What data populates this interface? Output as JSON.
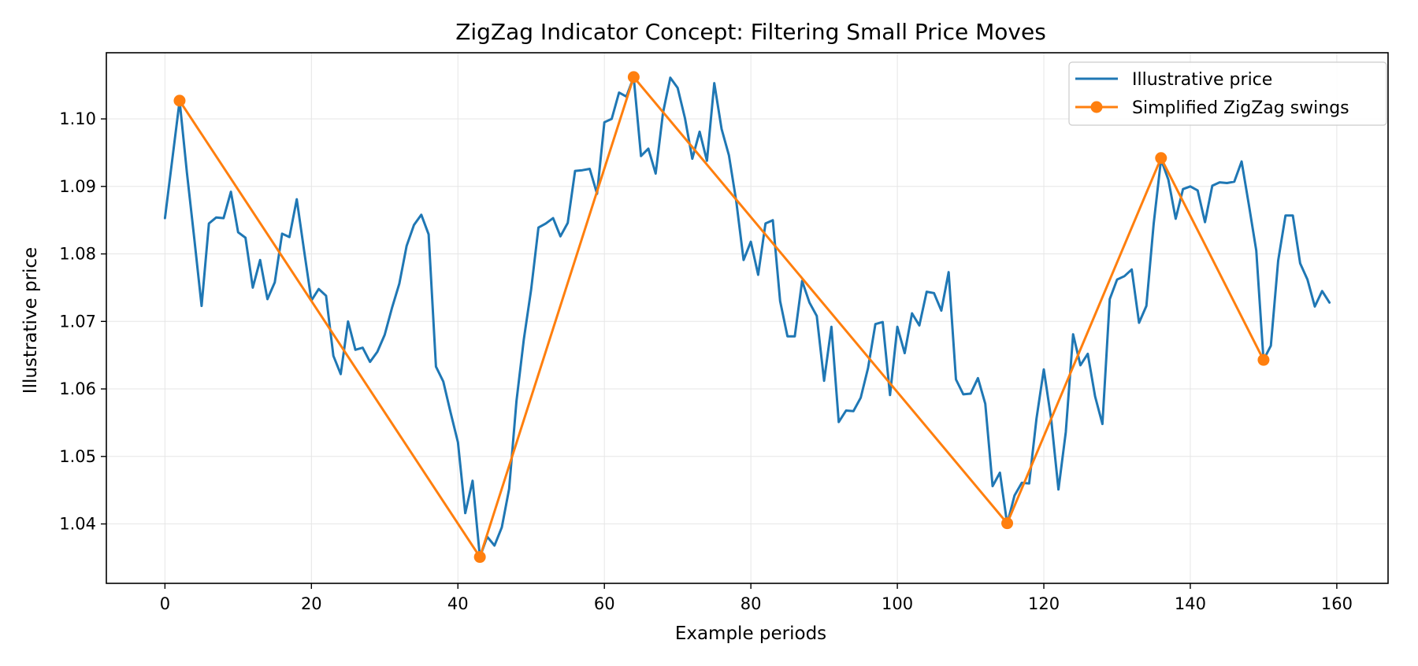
{
  "chart_data": {
    "type": "line",
    "title": "ZigZag Indicator Concept: Filtering Small Price Moves",
    "xlabel": "Example periods",
    "ylabel": "Illustrative price",
    "xlim": [
      -8,
      167
    ],
    "ylim": [
      1.0312,
      1.1098
    ],
    "xticks": [
      0,
      20,
      40,
      60,
      80,
      100,
      120,
      140,
      160
    ],
    "yticks": [
      1.04,
      1.05,
      1.06,
      1.07,
      1.08,
      1.09,
      1.1
    ],
    "xtick_labels": [
      "0",
      "20",
      "40",
      "60",
      "80",
      "100",
      "120",
      "140",
      "160"
    ],
    "ytick_labels": [
      "1.04",
      "1.05",
      "1.06",
      "1.07",
      "1.08",
      "1.09",
      "1.10"
    ],
    "grid": true,
    "legend_position": "top-right",
    "series": [
      {
        "name": "Illustrative price",
        "color": "#1f77b4",
        "marker": "none",
        "x": [
          0,
          1,
          2,
          3,
          4,
          5,
          6,
          7,
          8,
          9,
          10,
          11,
          12,
          13,
          14,
          15,
          16,
          17,
          18,
          19,
          20,
          21,
          22,
          23,
          24,
          25,
          26,
          27,
          28,
          29,
          30,
          31,
          32,
          33,
          34,
          35,
          36,
          37,
          38,
          39,
          40,
          41,
          42,
          43,
          44,
          45,
          46,
          47,
          48,
          49,
          50,
          51,
          52,
          53,
          54,
          55,
          56,
          57,
          58,
          59,
          60,
          61,
          62,
          63,
          64,
          65,
          66,
          67,
          68,
          69,
          70,
          71,
          72,
          73,
          74,
          75,
          76,
          77,
          78,
          79,
          80,
          81,
          82,
          83,
          84,
          85,
          86,
          87,
          88,
          89,
          90,
          91,
          92,
          93,
          94,
          95,
          96,
          97,
          98,
          99,
          100,
          101,
          102,
          103,
          104,
          105,
          106,
          107,
          108,
          109,
          110,
          111,
          112,
          113,
          114,
          115,
          116,
          117,
          118,
          119,
          120,
          121,
          122,
          123,
          124,
          125,
          126,
          127,
          128,
          129,
          130,
          131,
          132,
          133,
          134,
          135,
          136,
          137,
          138,
          139,
          140,
          141,
          142,
          143,
          144,
          145,
          146,
          147,
          148,
          149,
          150,
          151,
          152,
          153,
          154,
          155,
          156,
          157,
          158,
          159
        ],
        "y": [
          1.0853,
          1.094,
          1.1027,
          1.092,
          1.0823,
          1.0723,
          1.0845,
          1.0854,
          1.0853,
          1.0892,
          1.0832,
          1.0824,
          1.075,
          1.0791,
          1.0733,
          1.0758,
          1.083,
          1.0825,
          1.0881,
          1.0805,
          1.0731,
          1.0748,
          1.0738,
          1.0649,
          1.0622,
          1.07,
          1.0658,
          1.0661,
          1.064,
          1.0655,
          1.068,
          1.072,
          1.0756,
          1.0812,
          1.0843,
          1.0858,
          1.0829,
          1.0633,
          1.0611,
          1.0565,
          1.0521,
          1.0416,
          1.0464,
          1.0351,
          1.0381,
          1.0368,
          1.0395,
          1.0452,
          1.0582,
          1.0673,
          1.0747,
          1.0839,
          1.0845,
          1.0853,
          1.0826,
          1.0846,
          1.0923,
          1.0924,
          1.0926,
          1.0889,
          1.0995,
          1.1,
          1.1039,
          1.1033,
          1.1062,
          1.0945,
          1.0956,
          1.0919,
          1.1009,
          1.1061,
          1.1046,
          1.1001,
          1.0941,
          1.0981,
          1.0938,
          1.1053,
          1.0985,
          1.0946,
          1.0878,
          1.0791,
          1.0818,
          1.0769,
          1.0845,
          1.085,
          1.073,
          1.0678,
          1.0678,
          1.076,
          1.0728,
          1.0708,
          1.0612,
          1.0692,
          1.0551,
          1.0568,
          1.0567,
          1.0587,
          1.0631,
          1.0696,
          1.0699,
          1.0591,
          1.0692,
          1.0653,
          1.0712,
          1.0694,
          1.0744,
          1.0742,
          1.0716,
          1.0773,
          1.0614,
          1.0592,
          1.0593,
          1.0616,
          1.0578,
          1.0456,
          1.0476,
          1.04,
          1.0442,
          1.0461,
          1.046,
          1.0556,
          1.0629,
          1.0556,
          1.0451,
          1.0536,
          1.0681,
          1.0635,
          1.0652,
          1.0589,
          1.0548,
          1.0733,
          1.0762,
          1.0767,
          1.0777,
          1.0698,
          1.0723,
          1.0845,
          1.094,
          1.091,
          1.0852,
          1.0896,
          1.09,
          1.0894,
          1.0847,
          1.0901,
          1.0906,
          1.0905,
          1.0907,
          1.0937,
          1.0872,
          1.0805,
          1.0643,
          1.0664,
          1.079,
          1.0857,
          1.0857,
          1.0786,
          1.0762,
          1.0722,
          1.0745,
          1.0728
        ]
      },
      {
        "name": "Simplified ZigZag swings",
        "color": "#ff7f0e",
        "marker": "circle",
        "x": [
          2,
          43,
          64,
          115,
          136,
          150
        ],
        "y": [
          1.1027,
          1.0351,
          1.1062,
          1.0401,
          1.0942,
          1.0643
        ]
      }
    ]
  }
}
